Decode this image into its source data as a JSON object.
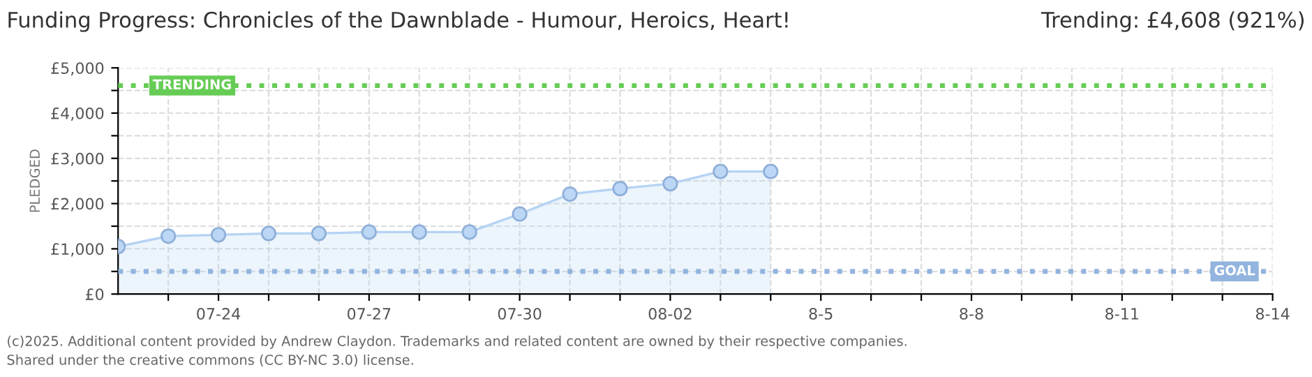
{
  "chart_data": {
    "type": "area",
    "title": "Funding Progress: Chronicles of the Dawnblade - Humour, Heroics, Heart!",
    "ylabel": "PLEDGED",
    "annotations": [
      "Trending: £4,608 (921%)",
      "(c)2025. Additional content provided by Andrew Claydon. Trademarks and related content are owned by their respective companies.",
      "Shared under the creative commons (CC BY-NC 3.0) license."
    ],
    "x": [
      "2025-07-22",
      "2025-07-23",
      "2025-07-24",
      "2025-07-25",
      "2025-07-26",
      "2025-07-27",
      "2025-07-28",
      "2025-07-29",
      "2025-07-30",
      "2025-07-31",
      "2025-08-01",
      "2025-08-02",
      "2025-08-03",
      "2025-08-04"
    ],
    "series": [
      {
        "color": "#b5d3f3",
        "values": [
          1050,
          1280,
          1310,
          1340,
          1340,
          1370,
          1370,
          1370,
          1770,
          2210,
          2330,
          2440,
          2710,
          2710
        ]
      }
    ],
    "xlim": [
      "2025-07-22",
      "2025-08-14"
    ],
    "xticks": [
      {
        "value": "2025-07-23",
        "label": null
      },
      {
        "value": "2025-07-24",
        "label": "07-24"
      },
      {
        "value": "2025-07-25",
        "label": null
      },
      {
        "value": "2025-07-26",
        "label": null
      },
      {
        "value": "2025-07-27",
        "label": "07-27"
      },
      {
        "value": "2025-07-28",
        "label": null
      },
      {
        "value": "2025-07-29",
        "label": null
      },
      {
        "value": "2025-07-30",
        "label": "07-30"
      },
      {
        "value": "2025-07-31",
        "label": null
      },
      {
        "value": "2025-08-01",
        "label": null
      },
      {
        "value": "2025-08-02",
        "label": "08-02"
      },
      {
        "value": "2025-08-03",
        "label": null
      },
      {
        "value": "2025-08-04",
        "label": null
      },
      {
        "value": "2025-08-05",
        "label": "8-5"
      },
      {
        "value": "2025-08-06",
        "label": null
      },
      {
        "value": "2025-08-07",
        "label": null
      },
      {
        "value": "2025-08-08",
        "label": "8-8"
      },
      {
        "value": "2025-08-09",
        "label": null
      },
      {
        "value": "2025-08-10",
        "label": null
      },
      {
        "value": "2025-08-11",
        "label": "8-11"
      },
      {
        "value": "2025-08-12",
        "label": null
      },
      {
        "value": "2025-08-13",
        "label": null
      },
      {
        "value": "2025-08-14",
        "label": "8-14"
      }
    ],
    "ylim": [
      0,
      5000
    ],
    "yticks": [
      {
        "value": 0,
        "label": "£0"
      },
      {
        "value": 500,
        "label": null
      },
      {
        "value": 1000,
        "label": "£1,000"
      },
      {
        "value": 1500,
        "label": null
      },
      {
        "value": 2000,
        "label": "£2,000"
      },
      {
        "value": 2500,
        "label": null
      },
      {
        "value": 3000,
        "label": "£3,000"
      },
      {
        "value": 3500,
        "label": null
      },
      {
        "value": 4000,
        "label": "£4,000"
      },
      {
        "value": 4500,
        "label": null
      },
      {
        "value": 5000,
        "label": "£5,000"
      }
    ],
    "ref_lines": [
      {
        "axis": "y",
        "value": 4608,
        "label": "TRENDING",
        "color": "#66cc55",
        "line_style": "dotted"
      },
      {
        "axis": "y",
        "value": 500,
        "label": "GOAL",
        "color": "#92b4de",
        "line_style": "dotted"
      }
    ],
    "grid": true,
    "marker": "circle"
  }
}
